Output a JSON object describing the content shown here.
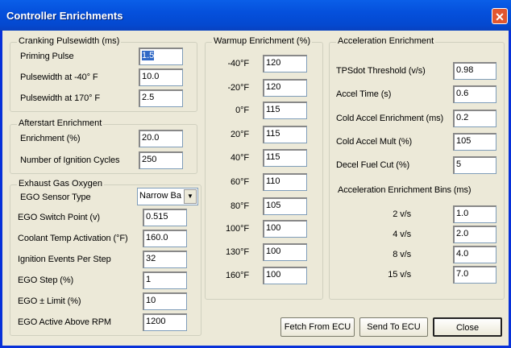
{
  "window": {
    "title": "Controller Enrichments",
    "close_icon": "close-x-icon"
  },
  "cranking": {
    "title": "Cranking Pulsewidth (ms)",
    "rows": [
      {
        "label": "Priming Pulse",
        "value": "1.5"
      },
      {
        "label": "Pulsewidth at -40° F",
        "value": "10.0"
      },
      {
        "label": "Pulsewidth at  170° F",
        "value": "2.5"
      }
    ]
  },
  "afterstart": {
    "title": "Afterstart Enrichment",
    "rows": [
      {
        "label": "Enrichment (%)",
        "value": "20.0"
      },
      {
        "label": "Number of Ignition Cycles",
        "value": "250"
      }
    ]
  },
  "ego": {
    "title": "Exhaust Gas Oxygen",
    "sensor_label": "EGO Sensor Type",
    "sensor_value": "Narrow Ba",
    "rows": [
      {
        "label": "EGO Switch Point (v)",
        "value": "0.515"
      },
      {
        "label": "Coolant Temp Activation (°F)",
        "value": "160.0"
      },
      {
        "label": "Ignition Events Per Step",
        "value": "32"
      },
      {
        "label": "EGO Step (%)",
        "value": "1"
      },
      {
        "label": "EGO ± Limit (%)",
        "value": "10"
      },
      {
        "label": "EGO Active Above RPM",
        "value": "1200"
      }
    ]
  },
  "warmup": {
    "title": "Warmup Enrichment (%)",
    "rows": [
      {
        "label": "-40°F",
        "value": "120"
      },
      {
        "label": "-20°F",
        "value": "120"
      },
      {
        "label": "0°F",
        "value": "115"
      },
      {
        "label": "20°F",
        "value": "115"
      },
      {
        "label": "40°F",
        "value": "115"
      },
      {
        "label": "60°F",
        "value": "110"
      },
      {
        "label": "80°F",
        "value": "105"
      },
      {
        "label": "100°F",
        "value": "100"
      },
      {
        "label": "130°F",
        "value": "100"
      },
      {
        "label": "160°F",
        "value": "100"
      }
    ]
  },
  "accel": {
    "title": "Acceleration Enrichment",
    "rows": [
      {
        "label": "TPSdot Threshold (v/s)",
        "value": "0.98"
      },
      {
        "label": "Accel Time (s)",
        "value": "0.6"
      },
      {
        "label": "Cold Accel Enrichment (ms)",
        "value": "0.2"
      },
      {
        "label": "Cold Accel Mult (%)",
        "value": "105"
      },
      {
        "label": "Decel Fuel Cut (%)",
        "value": "5"
      }
    ],
    "bins_title": "Acceleration Enrichment Bins (ms)",
    "bins": [
      {
        "label": "2 v/s",
        "value": "1.0"
      },
      {
        "label": "4 v/s",
        "value": "2.0"
      },
      {
        "label": "8 v/s",
        "value": "4.0"
      },
      {
        "label": "15 v/s",
        "value": "7.0"
      }
    ]
  },
  "buttons": {
    "fetch": "Fetch From ECU",
    "send": "Send To ECU",
    "close": "Close"
  }
}
